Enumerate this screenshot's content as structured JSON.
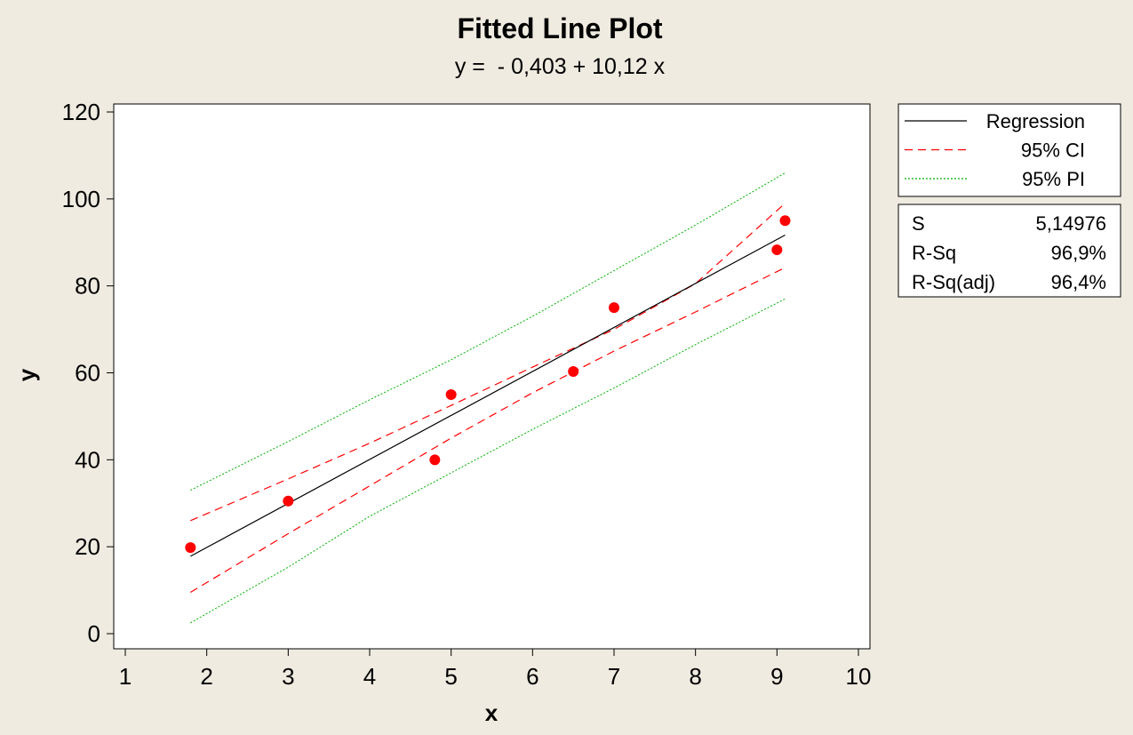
{
  "chart_data": {
    "type": "scatter",
    "title": "Fitted Line Plot",
    "subtitle": "y =  - 0,403 + 10,12 x",
    "xlabel": "x",
    "ylabel": "y",
    "xlim": [
      1,
      10
    ],
    "ylim": [
      -3,
      120
    ],
    "xticks": [
      1,
      2,
      3,
      4,
      5,
      6,
      7,
      8,
      9,
      10
    ],
    "yticks": [
      0,
      20,
      40,
      60,
      80,
      100,
      120
    ],
    "grid": false,
    "points": {
      "x": [
        1.8,
        3.0,
        4.8,
        5.0,
        6.5,
        7.0,
        9.0,
        9.1
      ],
      "y": [
        19.8,
        30.5,
        40.0,
        55.0,
        60.3,
        75.0,
        88.3,
        95.0
      ]
    },
    "fit": {
      "intercept": -0.403,
      "slope": 10.12,
      "x_range": [
        1.8,
        9.1
      ]
    },
    "ci_upper": {
      "x": [
        1.8,
        3.0,
        4.0,
        5.0,
        6.0,
        7.0,
        8.0,
        9.1
      ],
      "y": [
        26.0,
        35.6,
        43.8,
        52.5,
        61.3,
        70.0,
        80.5,
        99.0
      ]
    },
    "ci_lower": {
      "x": [
        1.8,
        3.0,
        4.0,
        5.0,
        6.0,
        7.0,
        8.0,
        9.1
      ],
      "y": [
        9.5,
        23.0,
        34.0,
        45.0,
        55.4,
        65.0,
        74.0,
        84.2
      ]
    },
    "pi_upper": {
      "x": [
        1.8,
        3.0,
        4.0,
        5.0,
        6.0,
        7.0,
        8.0,
        9.1
      ],
      "y": [
        33.0,
        44.2,
        53.8,
        63.0,
        73.0,
        83.5,
        94.0,
        106.0
      ]
    },
    "pi_lower": {
      "x": [
        1.8,
        3.0,
        4.0,
        5.0,
        6.0,
        7.0,
        8.0,
        9.1
      ],
      "y": [
        2.5,
        15.3,
        27.0,
        37.0,
        47.0,
        56.5,
        66.5,
        77.0
      ]
    },
    "legend": {
      "placement": "right",
      "items": [
        {
          "label": "Regression",
          "color": "#000000",
          "style": "solid"
        },
        {
          "label": "95% CI",
          "color": "#ff0000",
          "style": "dashed"
        },
        {
          "label": "95% PI",
          "color": "#00b000",
          "style": "dotted"
        }
      ]
    },
    "stats": [
      {
        "label": "S",
        "value": "5,14976"
      },
      {
        "label": "R-Sq",
        "value": "96,9%"
      },
      {
        "label": "R-Sq(adj)",
        "value": "96,4%"
      }
    ],
    "colors": {
      "background": "#efebe0",
      "plot_background": "#ffffff",
      "points": "#ff0000",
      "regression": "#000000",
      "ci": "#ff0000",
      "pi": "#00b000"
    }
  }
}
